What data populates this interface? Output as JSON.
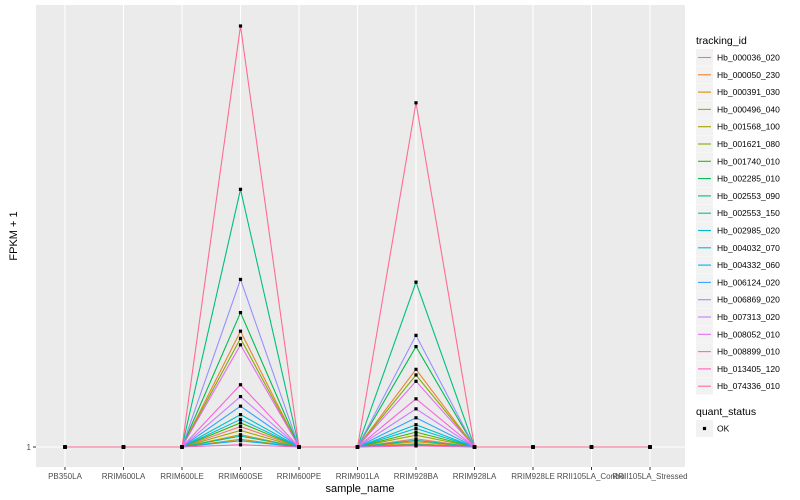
{
  "chart_data": {
    "type": "line",
    "xlabel": "sample_name",
    "ylabel": "FPKM + 1",
    "y_tick_labels": [
      "1"
    ],
    "y_scale": "log",
    "grid": true,
    "legend_position": "right",
    "categories": [
      "PB350LA",
      "RRIM600LA",
      "RRIM600LE",
      "RRIM600SE",
      "RRIM600PE",
      "RRIM901LA",
      "RRIM928BA",
      "RRIM928LA",
      "RRIM928LE",
      "RRII105LA_Control",
      "RRII105LA_Stressed"
    ],
    "legend_title": "tracking_id",
    "quant_status_legend": {
      "title": "quant_status",
      "labels": [
        "OK"
      ]
    },
    "series": [
      {
        "name": "Hb_000036_020",
        "color": "#F8766D",
        "values": [
          1,
          1,
          1,
          1.45,
          1,
          1,
          1.16,
          1,
          1,
          1,
          1
        ]
      },
      {
        "name": "Hb_000050_230",
        "color": "#EA8331",
        "values": [
          1,
          1,
          1,
          8.2,
          1,
          1,
          4.1,
          1,
          1,
          1,
          1
        ]
      },
      {
        "name": "Hb_000391_030",
        "color": "#D89000",
        "values": [
          1,
          1,
          1,
          1.25,
          1,
          1,
          1.1,
          1,
          1,
          1,
          1
        ]
      },
      {
        "name": "Hb_000496_040",
        "color": "#C09B00",
        "values": [
          1,
          1,
          1,
          1.15,
          1,
          1,
          1.06,
          1,
          1,
          1,
          1
        ]
      },
      {
        "name": "Hb_001568_100",
        "color": "#A3A500",
        "values": [
          1,
          1,
          1,
          1.35,
          1,
          1,
          1.24,
          1,
          1,
          1,
          1
        ]
      },
      {
        "name": "Hb_001621_080",
        "color": "#7CAE00",
        "values": [
          1,
          1,
          1,
          7.2,
          1,
          1,
          3.7,
          1,
          1,
          1,
          1
        ]
      },
      {
        "name": "Hb_001740_010",
        "color": "#39B600",
        "values": [
          1,
          1,
          1,
          1.55,
          1,
          1,
          1.31,
          1,
          1,
          1,
          1
        ]
      },
      {
        "name": "Hb_002285_010",
        "color": "#00BB4E",
        "values": [
          1,
          1,
          1,
          11.5,
          1,
          1,
          6.2,
          1,
          1,
          1,
          1
        ]
      },
      {
        "name": "Hb_002553_090",
        "color": "#00BF7D",
        "values": [
          1,
          1,
          1,
          108,
          1,
          1,
          20,
          1,
          1,
          1,
          1
        ]
      },
      {
        "name": "Hb_002553_150",
        "color": "#00C1A3",
        "values": [
          1,
          1,
          1,
          1.22,
          1,
          1,
          1.13,
          1,
          1,
          1,
          1
        ]
      },
      {
        "name": "Hb_002985_020",
        "color": "#00BFC4",
        "values": [
          1,
          1,
          1,
          1.8,
          1,
          1,
          1.5,
          1,
          1,
          1,
          1
        ]
      },
      {
        "name": "Hb_004032_070",
        "color": "#00BAE0",
        "values": [
          1,
          1,
          1,
          1.65,
          1,
          1,
          1.4,
          1,
          1,
          1,
          1
        ]
      },
      {
        "name": "Hb_004332_060",
        "color": "#00B0F6",
        "values": [
          1,
          1,
          1,
          1.12,
          1,
          1,
          1.04,
          1,
          1,
          1,
          1
        ]
      },
      {
        "name": "Hb_006124_020",
        "color": "#35A2FF",
        "values": [
          1,
          1,
          1,
          2.1,
          1,
          1,
          1.7,
          1,
          1,
          1,
          1
        ]
      },
      {
        "name": "Hb_006869_020",
        "color": "#9590FF",
        "values": [
          1,
          1,
          1,
          21,
          1,
          1,
          7.6,
          1,
          1,
          1,
          1
        ]
      },
      {
        "name": "Hb_007313_020",
        "color": "#C77CFF",
        "values": [
          1,
          1,
          1,
          2.5,
          1,
          1,
          2.0,
          1,
          1,
          1,
          1
        ]
      },
      {
        "name": "Hb_008052_010",
        "color": "#E76BF3",
        "values": [
          1,
          1,
          1,
          6.4,
          1,
          1,
          3.3,
          1,
          1,
          1,
          1
        ]
      },
      {
        "name": "Hb_008899_010",
        "color": "#FA62DB",
        "values": [
          1,
          1,
          1,
          3.1,
          1,
          1,
          2.4,
          1,
          1,
          1,
          1
        ]
      },
      {
        "name": "Hb_013405_120",
        "color": "#FF62BC",
        "values": [
          1,
          1,
          1,
          1.04,
          1,
          1,
          1.02,
          1,
          1,
          1,
          1
        ]
      },
      {
        "name": "Hb_074336_010",
        "color": "#FF6C91",
        "values": [
          1,
          1,
          1,
          2100,
          1,
          1,
          520,
          1,
          1,
          1,
          1
        ]
      }
    ],
    "point_color": "#000000"
  },
  "style": {
    "panel_background": "#EBEBEB",
    "grid_color": "#FFFFFF"
  }
}
